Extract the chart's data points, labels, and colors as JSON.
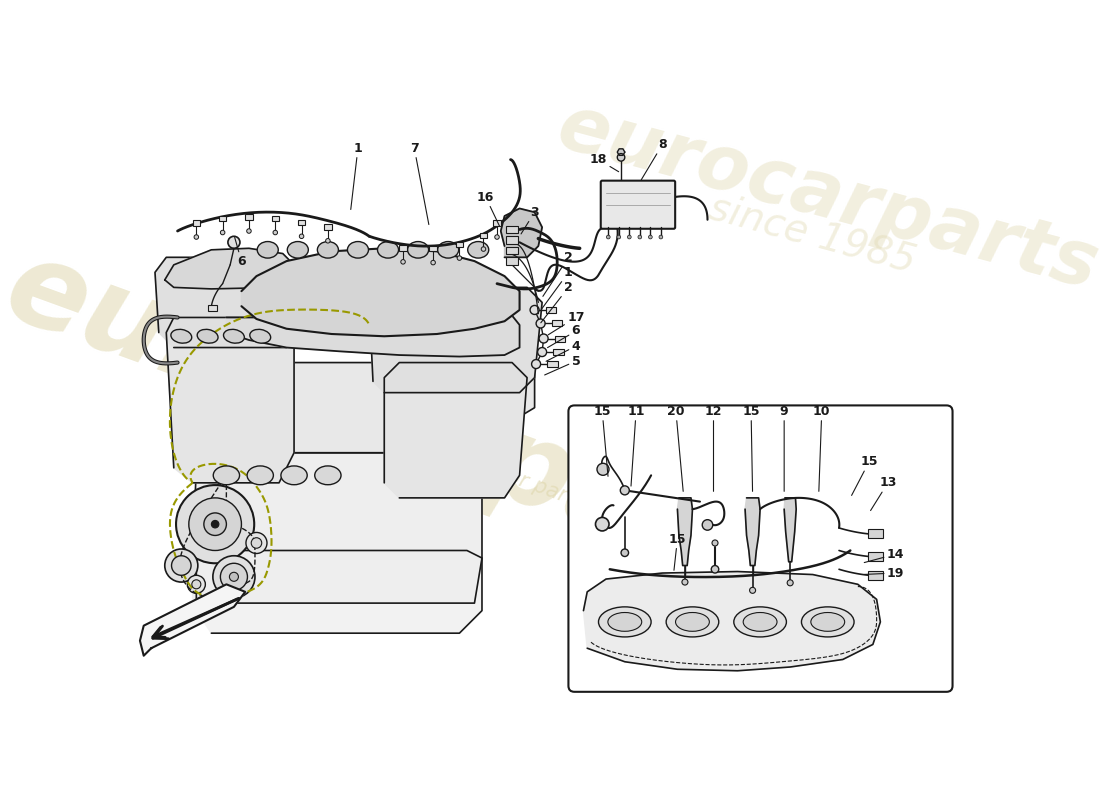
{
  "bg_color": "#ffffff",
  "lc": "#1a1a1a",
  "llc": "#aaaaaa",
  "wm1": "eurocarparts",
  "wm2": "a passion for parts since 1985",
  "wm_color": "#e0d8b0",
  "title_fontsize": 9,
  "label_fontsize": 9
}
